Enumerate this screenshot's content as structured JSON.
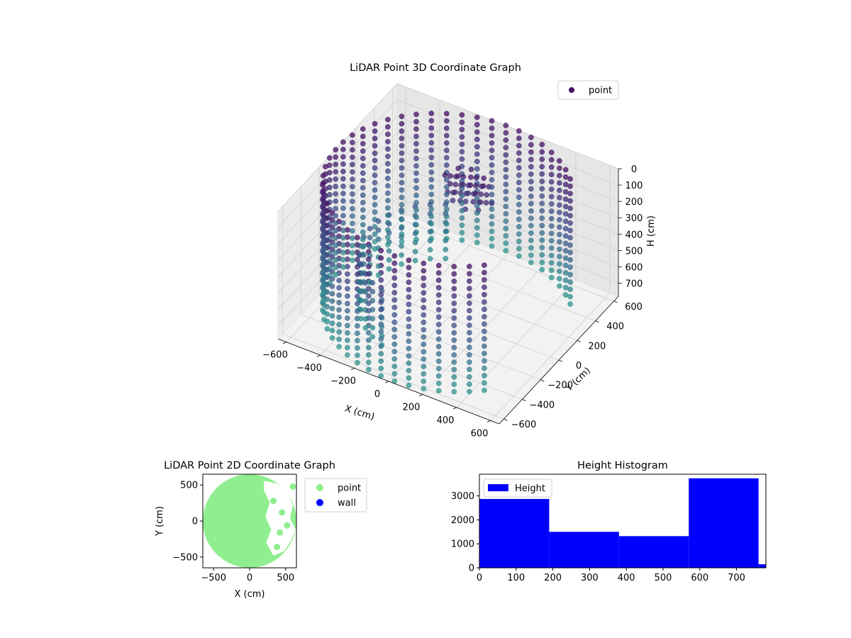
{
  "chart_data": [
    {
      "type": "scatter",
      "projection": "3d",
      "title": "LiDAR Point 3D Coordinate Graph",
      "xlabel": "X (cm)",
      "ylabel": "Y (cm)",
      "zlabel": "H (cm)",
      "x_ticks": [
        -600,
        -400,
        -200,
        0,
        200,
        400,
        600
      ],
      "y_ticks": [
        -600,
        -400,
        -200,
        0,
        200,
        400,
        600
      ],
      "z_ticks": [
        0,
        100,
        200,
        300,
        400,
        500,
        600,
        700
      ],
      "xlim": [
        -650,
        650
      ],
      "ylim": [
        -650,
        650
      ],
      "zlim": [
        780,
        0
      ],
      "z_inverted": true,
      "grid": true,
      "colormap": "viridis",
      "legend": {
        "placement": "top-right",
        "entries": [
          "point"
        ],
        "colors": [
          "#440f63"
        ]
      },
      "series": [
        {
          "name": "point",
          "description_shape": "cylindrical wall radius ~650cm, open on the +X side, heights 0-780cm, with inner structure",
          "wall_radius": 650,
          "wall_gap_angle_deg": [
            -40,
            40
          ],
          "height_range": [
            0,
            780
          ]
        }
      ]
    },
    {
      "type": "scatter",
      "title": "LiDAR Point 2D Coordinate Graph",
      "xlabel": "X (cm)",
      "ylabel": "Y (cm)",
      "x_ticks": [
        -500,
        0,
        500
      ],
      "y_ticks": [
        -500,
        0,
        500
      ],
      "xlim": [
        -650,
        650
      ],
      "ylim": [
        -650,
        650
      ],
      "legend": {
        "placement": "outside-right",
        "entries": [
          {
            "name": "point",
            "color": "#90ee90"
          },
          {
            "name": "wall",
            "color": "#0000ff"
          }
        ]
      },
      "series": [
        {
          "name": "point",
          "color": "#90ee90",
          "shape": "filled disk radius ~650cm with void on +X side"
        },
        {
          "name": "wall",
          "color": "#0000ff",
          "count": 0
        }
      ]
    },
    {
      "type": "bar",
      "subtype": "histogram",
      "title": "Height Histogram",
      "xlabel": "",
      "ylabel": "",
      "bin_edges": [
        0,
        190,
        380,
        570,
        760,
        780
      ],
      "values": [
        2870,
        1500,
        1320,
        3730,
        150
      ],
      "x_ticks": [
        0,
        100,
        200,
        300,
        400,
        500,
        600,
        700
      ],
      "y_ticks": [
        0,
        1000,
        2000,
        3000
      ],
      "xlim": [
        0,
        780
      ],
      "ylim": [
        0,
        3900
      ],
      "legend": {
        "placement": "top-left",
        "entries": [
          "Height"
        ]
      },
      "series": [
        {
          "name": "Height",
          "color": "#0000ff"
        }
      ]
    }
  ]
}
